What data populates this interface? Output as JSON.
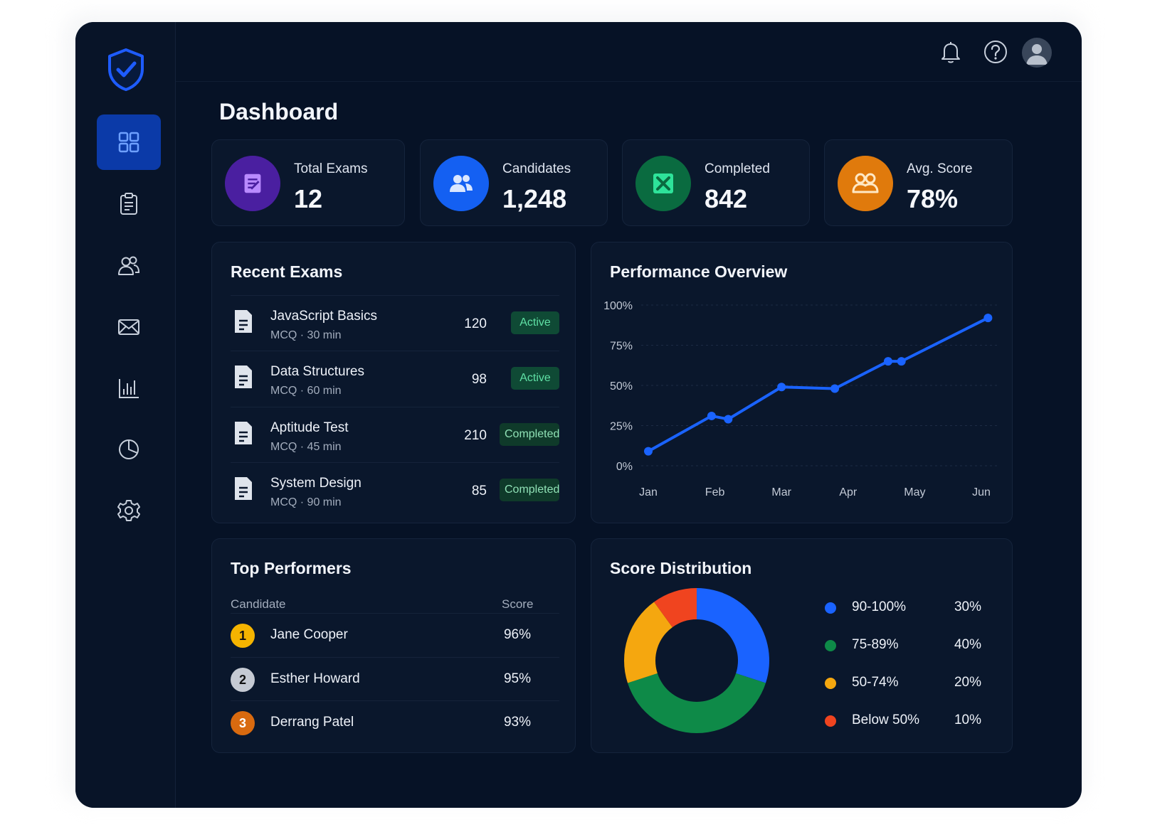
{
  "header": {
    "page_title": "Dashboard"
  },
  "stats": [
    {
      "label": "Total Exams",
      "value": "12",
      "icon": "exam-icon",
      "color": "#5b2bb0"
    },
    {
      "label": "Candidates",
      "value": "1,248",
      "icon": "users-icon",
      "color": "#1460f2"
    },
    {
      "label": "Completed",
      "value": "842",
      "icon": "completed-icon",
      "color": "#0a7a4a"
    },
    {
      "label": "Avg. Score",
      "value": "78%",
      "icon": "group-icon",
      "color": "#e8830f"
    }
  ],
  "recent_exams": {
    "title": "Recent Exams",
    "rows": [
      {
        "name": "JavaScript Basics",
        "meta": "MCQ · 30 min",
        "count": "120",
        "status": "Active"
      },
      {
        "name": "Data Structures",
        "meta": "MCQ · 60 min",
        "count": "98",
        "status": "Active"
      },
      {
        "name": "Aptitude Test",
        "meta": "MCQ · 45 min",
        "count": "210",
        "status": "Completed"
      },
      {
        "name": "System Design",
        "meta": "MCQ · 90 min",
        "count": "85",
        "status": "Completed"
      }
    ]
  },
  "top_performers": {
    "title": "Top Performers",
    "col_candidate": "Candidate",
    "col_score": "Score",
    "rows": [
      {
        "rank": "1",
        "name": "Jane Cooper",
        "score": "96%",
        "color": "#f5b400"
      },
      {
        "rank": "2",
        "name": "Esther Howard",
        "score": "95%",
        "color": "#c5cad3"
      },
      {
        "rank": "3",
        "name": "Derrang Patel",
        "score": "93%",
        "color": "#d96a0f"
      }
    ]
  },
  "performance": {
    "title": "Performance Overview"
  },
  "distribution": {
    "title": "Score Distribution"
  },
  "chart_data": [
    {
      "type": "line",
      "title": "Performance Overview",
      "x_ticks": [
        "Jan",
        "Feb",
        "Mar",
        "Apr",
        "May",
        "Jun"
      ],
      "y_ticks": [
        "0%",
        "25%",
        "50%",
        "75%",
        "100%"
      ],
      "ylim": [
        0,
        100
      ],
      "grid": true,
      "color": "#1a63ff",
      "x": [
        0,
        0.95,
        1.2,
        2.0,
        2.8,
        3.6,
        3.8,
        5.1
      ],
      "values": [
        9,
        31,
        29,
        49,
        48,
        65,
        65,
        92
      ]
    },
    {
      "type": "pie",
      "title": "Score Distribution",
      "donut": true,
      "slices": [
        {
          "label": "90-100%",
          "value": 30,
          "display": "30%",
          "color": "#1a63ff"
        },
        {
          "label": "75-89%",
          "value": 40,
          "display": "40%",
          "color": "#0e8a48"
        },
        {
          "label": "50-74%",
          "value": 20,
          "display": "20%",
          "color": "#f5a70f"
        },
        {
          "label": "Below 50%",
          "value": 10,
          "display": "10%",
          "color": "#f0441f"
        }
      ]
    }
  ]
}
